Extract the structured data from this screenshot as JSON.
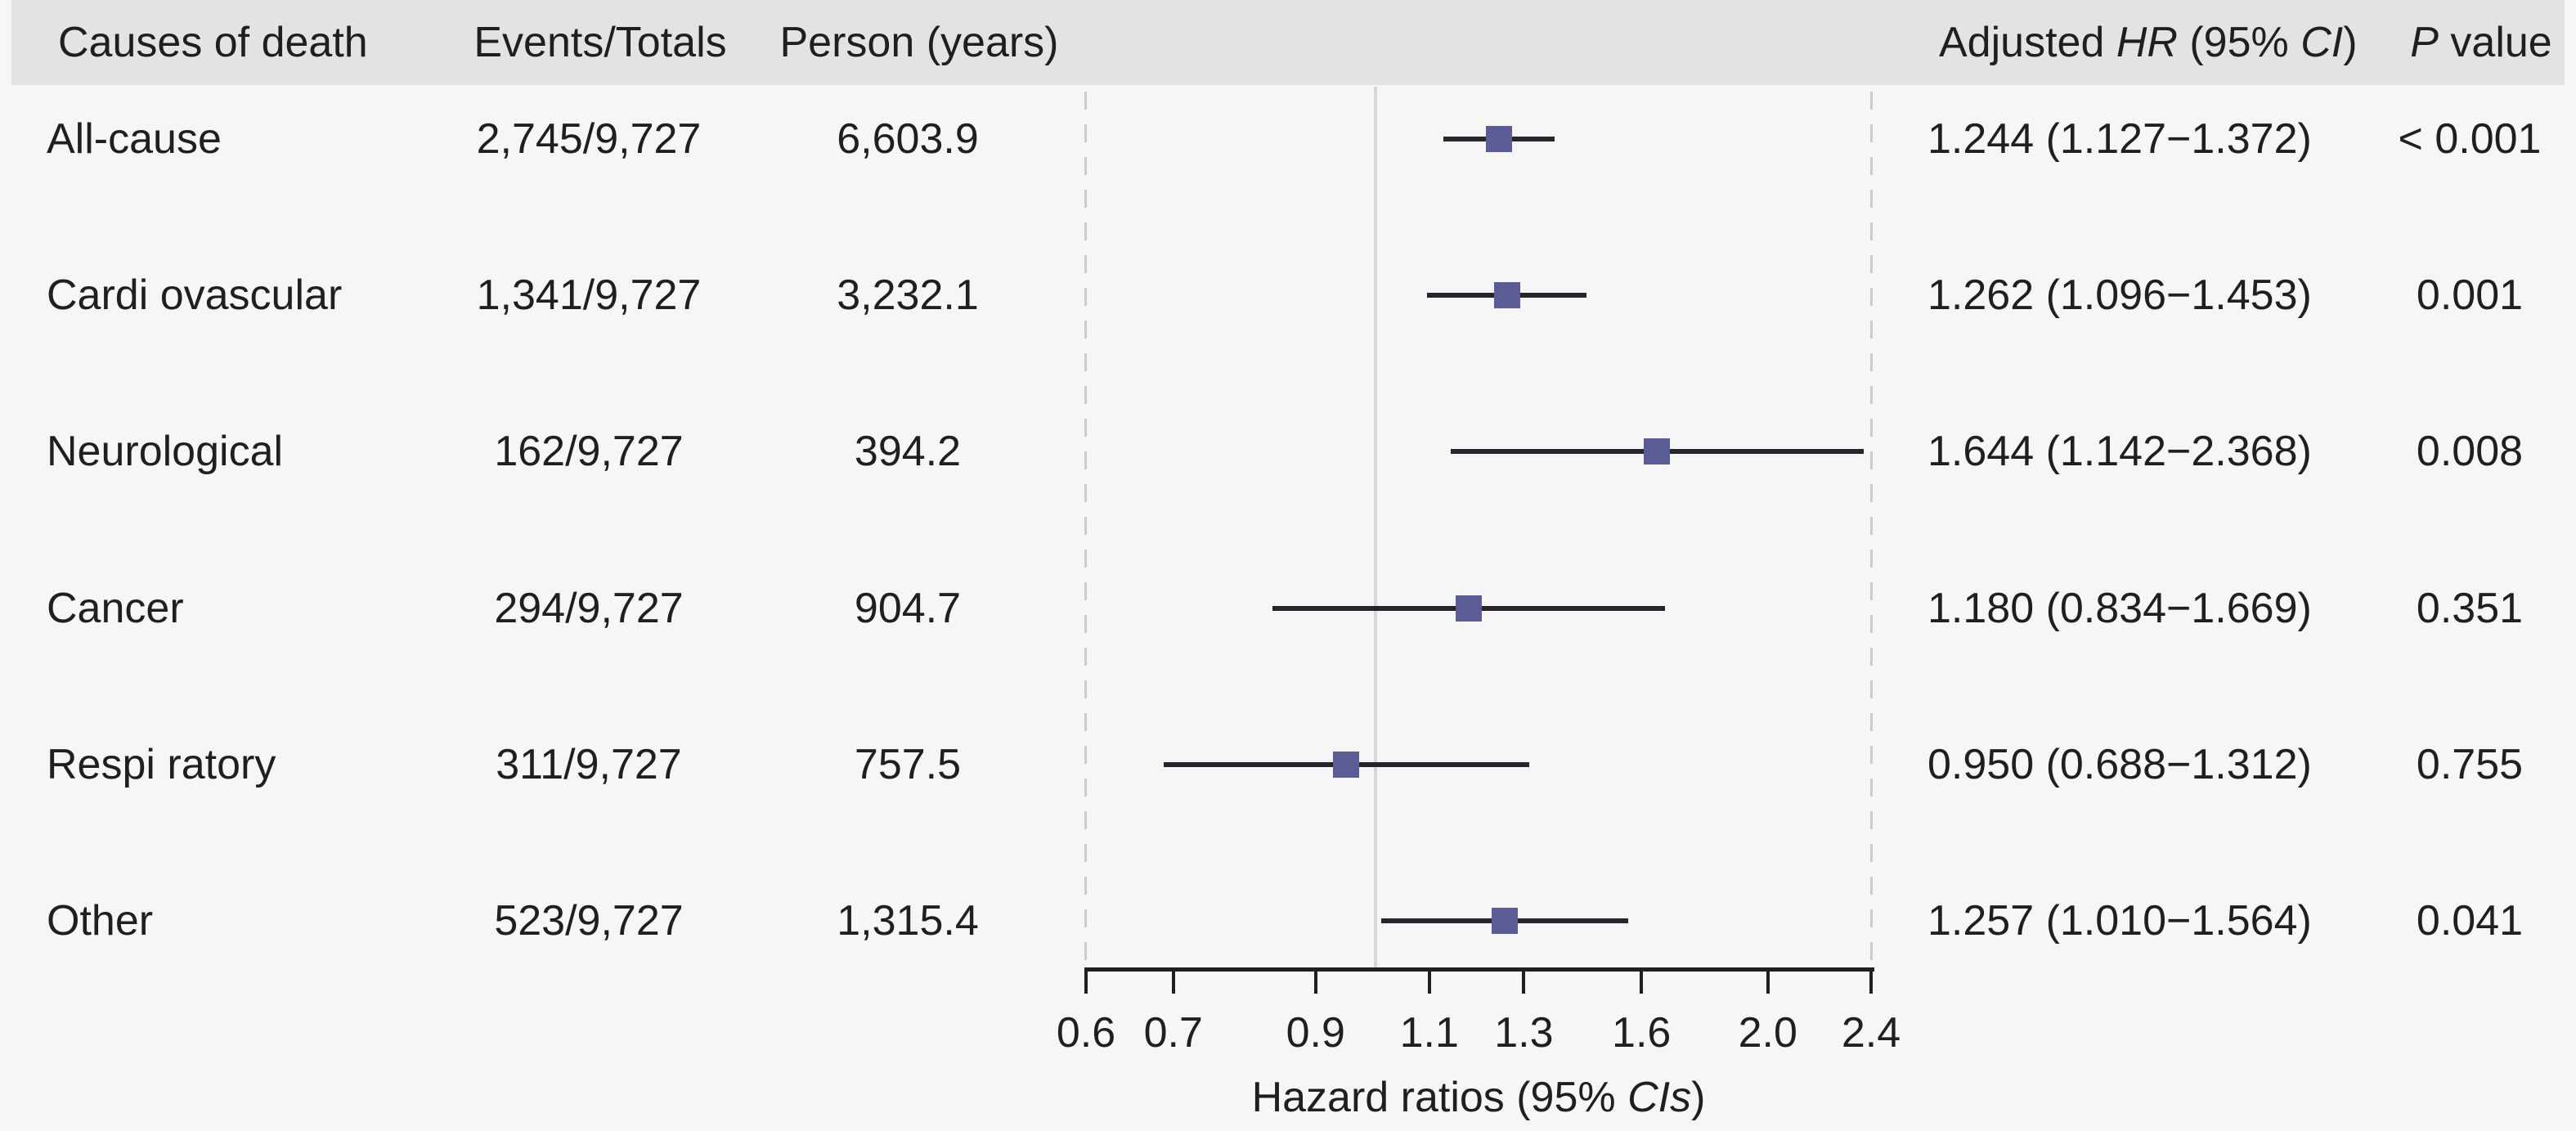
{
  "table": {
    "headers": {
      "causes": "Causes of death",
      "events": "Events/Totals",
      "person_years": "Person (years)",
      "hr": {
        "pre": "Adjusted ",
        "it1": "HR",
        "mid": " (95% ",
        "it2": "CI",
        "post": ")"
      },
      "p": {
        "it": "P",
        "post": " value"
      }
    },
    "rows": [
      {
        "cause": "All-cause",
        "events": "2,745/9,727",
        "person_years": "6,603.9",
        "hr_ci": "1.244 (1.127−1.372)",
        "p": "< 0.001"
      },
      {
        "cause": "Cardi ovascular",
        "events": "1,341/9,727",
        "person_years": "3,232.1",
        "hr_ci": "1.262 (1.096−1.453)",
        "p": "0.001"
      },
      {
        "cause": "Neurological",
        "events": "162/9,727",
        "person_years": "394.2",
        "hr_ci": "1.644 (1.142−2.368)",
        "p": "0.008"
      },
      {
        "cause": "Cancer",
        "events": "294/9,727",
        "person_years": "904.7",
        "hr_ci": "1.180 (0.834−1.669)",
        "p": "0.351"
      },
      {
        "cause": "Respi ratory",
        "events": "311/9,727",
        "person_years": "757.5",
        "hr_ci": "0.950 (0.688−1.312)",
        "p": "0.755"
      },
      {
        "cause": "Other",
        "events": "523/9,727",
        "person_years": "1,315.4",
        "hr_ci": "1.257 (1.010−1.564)",
        "p": "0.041"
      }
    ]
  },
  "chart_data": {
    "type": "scatter",
    "subtype": "forest-plot",
    "scale": "log",
    "xlim": [
      0.6,
      2.4
    ],
    "reference_line": 1.0,
    "x_ticks": [
      0.6,
      0.7,
      0.9,
      1.1,
      1.3,
      1.6,
      2.0,
      2.4
    ],
    "x_tick_labels": [
      "0.6",
      "0.7",
      "0.9",
      "1.1",
      "1.3",
      "1.6",
      "2.0",
      "2.4"
    ],
    "xlabel_pre": "Hazard ratios (95% ",
    "xlabel_italic": "CIs",
    "xlabel_post": ")",
    "grid": "off",
    "series": [
      {
        "name": "All-cause",
        "hr": 1.244,
        "ci_low": 1.127,
        "ci_high": 1.372,
        "p": "< 0.001"
      },
      {
        "name": "Cardi ovascular",
        "hr": 1.262,
        "ci_low": 1.096,
        "ci_high": 1.453,
        "p": "0.001"
      },
      {
        "name": "Neurological",
        "hr": 1.644,
        "ci_low": 1.142,
        "ci_high": 2.368,
        "p": "0.008"
      },
      {
        "name": "Cancer",
        "hr": 1.18,
        "ci_low": 0.834,
        "ci_high": 1.669,
        "p": "0.351"
      },
      {
        "name": "Respi ratory",
        "hr": 0.95,
        "ci_low": 0.688,
        "ci_high": 1.312,
        "p": "0.755"
      },
      {
        "name": "Other",
        "hr": 1.257,
        "ci_low": 1.01,
        "ci_high": 1.564,
        "p": "0.041"
      }
    ]
  },
  "colors": {
    "marker_fill": "#5b5b95",
    "ci_line": "#26242c",
    "axis": "#1f1f1f",
    "reference_line": "#d7d7d7",
    "dashed_guide": "#cbcbcb",
    "header_bg": "#e3e3e3",
    "page_bg": "#f6f6f6",
    "text": "#1f1f1f"
  }
}
